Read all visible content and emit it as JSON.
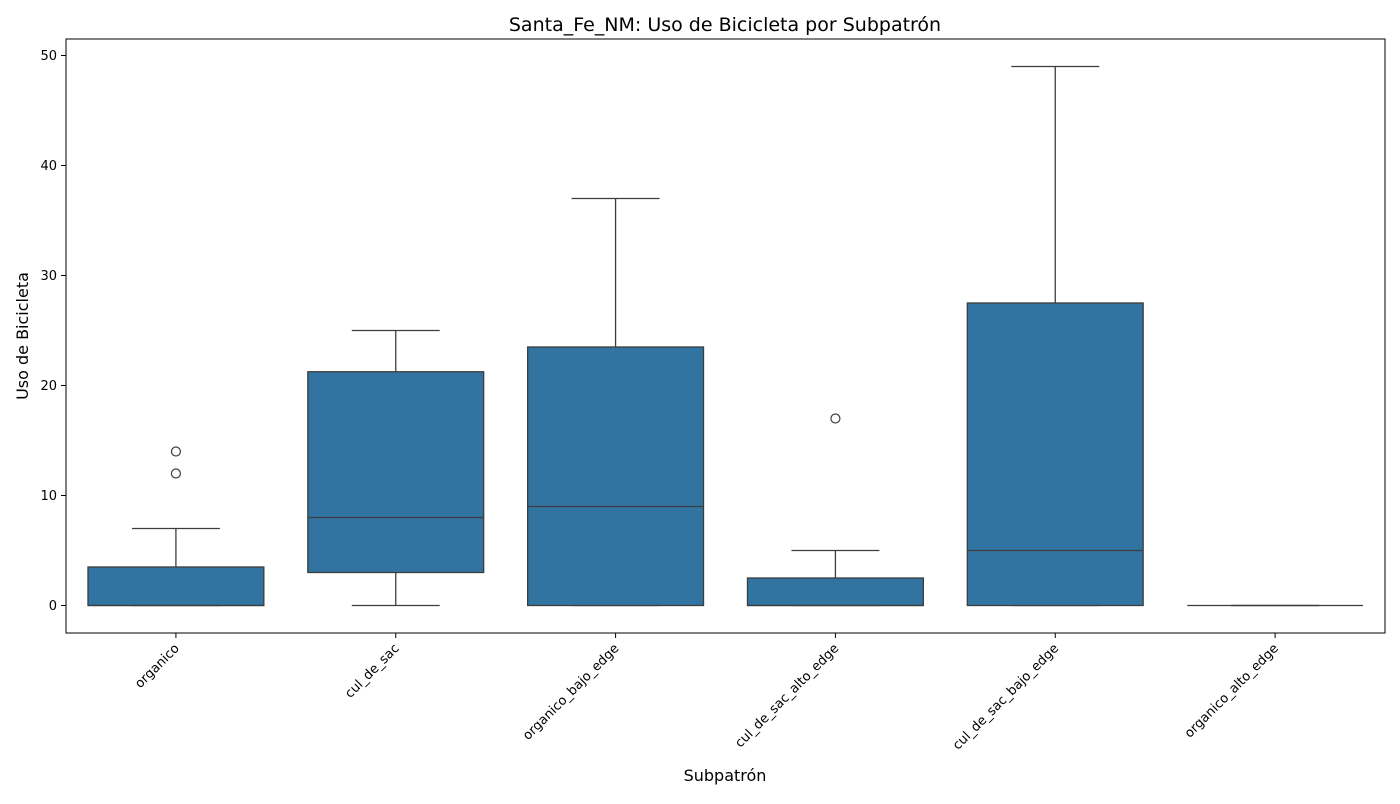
{
  "chart_data": {
    "type": "box",
    "title": "Santa_Fe_NM: Uso de Bicicleta por Subpatrón",
    "xlabel": "Subpatrón",
    "ylabel": "Uso de Bicicleta",
    "ylim": [
      -2.5,
      51.5
    ],
    "yticks": [
      0,
      10,
      20,
      30,
      40,
      50
    ],
    "ytick_labels": [
      "0",
      "10",
      "20",
      "30",
      "40",
      "50"
    ],
    "grid": false,
    "box_color": "#3274a1",
    "line_color": "#3d3d3d",
    "categories": [
      "organico",
      "cul_de_sac",
      "organico_bajo_edge",
      "cul_de_sac_alto_edge",
      "cul_de_sac_bajo_edge",
      "organico_alto_edge"
    ],
    "boxes": [
      {
        "category": "organico",
        "whisker_low": 0,
        "q1": 0,
        "median": 0,
        "q3": 3.5,
        "whisker_high": 7,
        "outliers": [
          12,
          14
        ]
      },
      {
        "category": "cul_de_sac",
        "whisker_low": 0,
        "q1": 3,
        "median": 8,
        "q3": 21.25,
        "whisker_high": 25,
        "outliers": []
      },
      {
        "category": "organico_bajo_edge",
        "whisker_low": 0,
        "q1": 0,
        "median": 9,
        "q3": 23.5,
        "whisker_high": 37,
        "outliers": []
      },
      {
        "category": "cul_de_sac_alto_edge",
        "whisker_low": 0,
        "q1": 0,
        "median": 0,
        "q3": 2.5,
        "whisker_high": 5,
        "outliers": [
          17
        ]
      },
      {
        "category": "cul_de_sac_bajo_edge",
        "whisker_low": 0,
        "q1": 0,
        "median": 5,
        "q3": 27.5,
        "whisker_high": 49,
        "outliers": []
      },
      {
        "category": "organico_alto_edge",
        "whisker_low": 0,
        "q1": 0,
        "median": 0,
        "q3": 0,
        "whisker_high": 0,
        "outliers": []
      }
    ]
  }
}
